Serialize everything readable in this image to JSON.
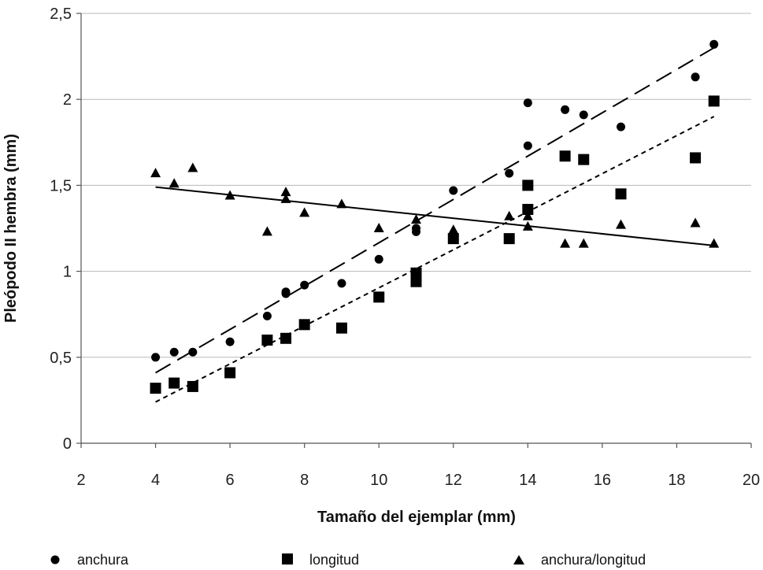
{
  "chart_data": {
    "type": "scatter",
    "title": "",
    "xlabel": "Tamaño del ejemplar (mm)",
    "ylabel": "Pleópodo II hembra (mm)",
    "xlim": [
      2,
      20
    ],
    "ylim": [
      0,
      2.5
    ],
    "xticks": [
      "2",
      "4",
      "6",
      "8",
      "10",
      "12",
      "14",
      "16",
      "18",
      "20"
    ],
    "yticks": [
      "0",
      "0,5",
      "1",
      "1,5",
      "2",
      "2,5"
    ],
    "grid": "horizontal",
    "legend_position": "bottom",
    "series": [
      {
        "name": "anchura",
        "marker": "circle",
        "trendline": "dashed",
        "trend": [
          [
            4,
            0.41
          ],
          [
            19,
            2.3
          ]
        ],
        "points": [
          [
            4,
            0.5
          ],
          [
            4.5,
            0.53
          ],
          [
            5,
            0.53
          ],
          [
            6,
            0.59
          ],
          [
            7,
            0.74
          ],
          [
            7.5,
            0.88
          ],
          [
            7.5,
            0.87
          ],
          [
            8,
            0.92
          ],
          [
            9,
            0.93
          ],
          [
            10,
            1.07
          ],
          [
            11,
            1.23
          ],
          [
            11,
            1.25
          ],
          [
            12,
            1.47
          ],
          [
            13.5,
            1.57
          ],
          [
            14,
            1.73
          ],
          [
            14,
            1.98
          ],
          [
            15,
            1.94
          ],
          [
            15.5,
            1.91
          ],
          [
            16.5,
            1.84
          ],
          [
            18.5,
            2.13
          ],
          [
            19,
            2.32
          ]
        ]
      },
      {
        "name": "longitud",
        "marker": "square",
        "trendline": "dotted",
        "trend": [
          [
            4,
            0.24
          ],
          [
            19,
            1.9
          ]
        ],
        "points": [
          [
            4,
            0.32
          ],
          [
            4.5,
            0.35
          ],
          [
            5,
            0.33
          ],
          [
            6,
            0.41
          ],
          [
            7,
            0.6
          ],
          [
            7.5,
            0.61
          ],
          [
            8,
            0.69
          ],
          [
            9,
            0.67
          ],
          [
            10,
            0.85
          ],
          [
            11,
            0.94
          ],
          [
            11,
            0.99
          ],
          [
            12,
            1.19
          ],
          [
            13.5,
            1.19
          ],
          [
            14,
            1.36
          ],
          [
            14,
            1.5
          ],
          [
            15,
            1.67
          ],
          [
            15.5,
            1.65
          ],
          [
            16.5,
            1.45
          ],
          [
            18.5,
            1.66
          ],
          [
            19,
            1.99
          ]
        ]
      },
      {
        "name": "anchura/longitud",
        "marker": "triangle",
        "trendline": "solid",
        "trend": [
          [
            4,
            1.49
          ],
          [
            19,
            1.15
          ]
        ],
        "points": [
          [
            4,
            1.57
          ],
          [
            4.5,
            1.51
          ],
          [
            5,
            1.6
          ],
          [
            6,
            1.44
          ],
          [
            7,
            1.23
          ],
          [
            7.5,
            1.46
          ],
          [
            7.5,
            1.42
          ],
          [
            8,
            1.34
          ],
          [
            9,
            1.39
          ],
          [
            10,
            1.25
          ],
          [
            11,
            1.3
          ],
          [
            12,
            1.24
          ],
          [
            13.5,
            1.32
          ],
          [
            14,
            1.32
          ],
          [
            14,
            1.26
          ],
          [
            15,
            1.16
          ],
          [
            15.5,
            1.16
          ],
          [
            16.5,
            1.27
          ],
          [
            18.5,
            1.28
          ],
          [
            19,
            1.16
          ]
        ]
      }
    ]
  }
}
